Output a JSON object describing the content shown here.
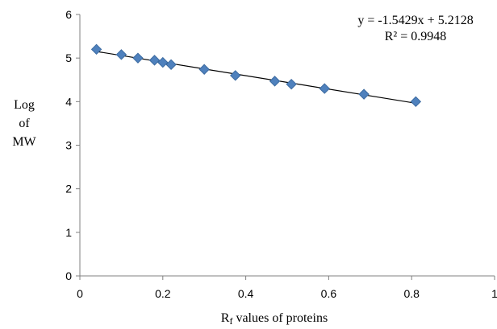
{
  "chart_data": {
    "type": "scatter",
    "title": "",
    "xlabel": {
      "main": "R",
      "subscript": "f",
      "rest": " values of proteins"
    },
    "ylabel": [
      "Log",
      "of",
      "MW"
    ],
    "xlim": [
      0,
      1
    ],
    "ylim": [
      0,
      6
    ],
    "xticks": [
      0,
      0.2,
      0.4,
      0.6,
      0.8,
      1
    ],
    "yticks": [
      0,
      1,
      2,
      3,
      4,
      5,
      6
    ],
    "grid": false,
    "legend": "none",
    "series": [
      {
        "color": "#4f81bd",
        "marker": "diamond",
        "x": [
          0.04,
          0.1,
          0.14,
          0.18,
          0.2,
          0.22,
          0.3,
          0.375,
          0.47,
          0.51,
          0.59,
          0.685,
          0.81
        ],
        "y": [
          5.2,
          5.08,
          5.0,
          4.95,
          4.9,
          4.85,
          4.74,
          4.6,
          4.47,
          4.4,
          4.3,
          4.17,
          4.0
        ]
      }
    ],
    "trendline": {
      "type": "linear",
      "slope": -1.5429,
      "intercept": 5.2128,
      "x_range": [
        0.04,
        0.81
      ],
      "color": "#000000"
    },
    "annotations": {
      "equation": "y = -1.5429x + 5.2128",
      "r_squared": "R² = 0.9948"
    }
  }
}
